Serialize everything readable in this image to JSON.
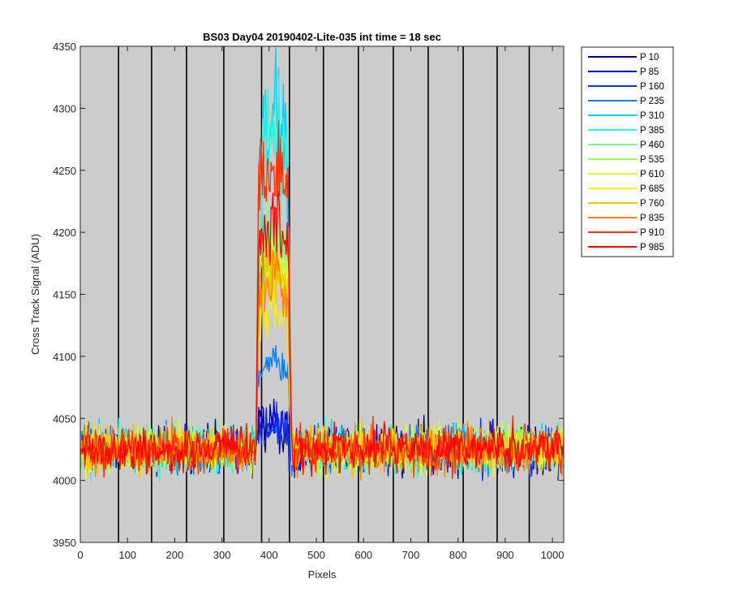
{
  "chart_data": {
    "type": "line",
    "title": "BS03 Day04 20190402-Lite-035 int time = 18 sec",
    "xlabel": "Pixels",
    "ylabel": "Cross Track Signal (ADU)",
    "xlim": [
      0,
      1024
    ],
    "ylim": [
      3950,
      4350
    ],
    "xticks": [
      0,
      100,
      200,
      300,
      400,
      500,
      600,
      700,
      800,
      900,
      1000
    ],
    "yticks": [
      3950,
      4000,
      4050,
      4100,
      4150,
      4200,
      4250,
      4300,
      4350
    ],
    "x_tick_labels": [
      "0",
      "100",
      "200",
      "300",
      "400",
      "500",
      "600",
      "700",
      "800",
      "900",
      "1000"
    ],
    "y_tick_labels": [
      "3950",
      "4000",
      "4050",
      "4100",
      "4150",
      "4200",
      "4250",
      "4300",
      "4350"
    ],
    "vertical_lines_x": [
      81,
      151,
      225,
      304,
      384,
      443,
      515,
      589,
      663,
      737,
      811,
      883,
      951
    ],
    "background_color": "#cccccc",
    "legend_position": "outside-top-right",
    "baseline_mean": 4025,
    "peak_region_x": [
      378,
      440
    ],
    "series": [
      {
        "name": "P 10",
        "color": "#00008f",
        "peak": 4045
      },
      {
        "name": "P 85",
        "color": "#0000df",
        "peak": 4048
      },
      {
        "name": "P 160",
        "color": "#0030ff",
        "peak": 4040
      },
      {
        "name": "P 235",
        "color": "#0080ff",
        "peak": 4095
      },
      {
        "name": "P 310",
        "color": "#00cfff",
        "peak": 4300
      },
      {
        "name": "P 385",
        "color": "#20ffdf",
        "peak": 4280
      },
      {
        "name": "P 460",
        "color": "#70ff8f",
        "peak": 4195
      },
      {
        "name": "P 535",
        "color": "#9fff60",
        "peak": 4185
      },
      {
        "name": "P 610",
        "color": "#dfff20",
        "peak": 4180
      },
      {
        "name": "P 685",
        "color": "#ffef00",
        "peak": 4140
      },
      {
        "name": "P 760",
        "color": "#ffbf00",
        "peak": 4170
      },
      {
        "name": "P 835",
        "color": "#ff8000",
        "peak": 4165
      },
      {
        "name": "P 910",
        "color": "#ff3000",
        "peak": 4255
      },
      {
        "name": "P 985",
        "color": "#ff0000",
        "peak": 4210
      }
    ]
  }
}
